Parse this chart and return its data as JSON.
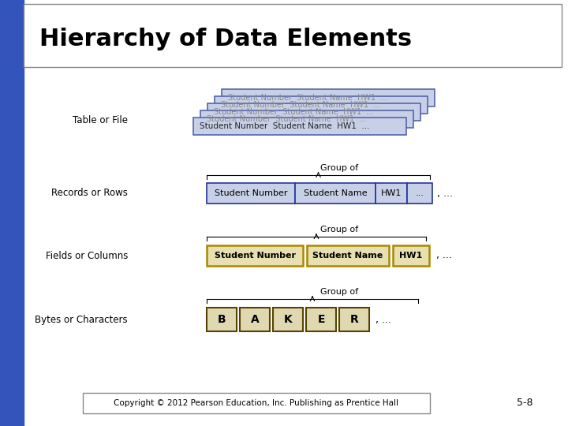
{
  "title": "Hierarchy of Data Elements",
  "title_fontsize": 22,
  "title_fontweight": "bold",
  "bg_color": "#ffffff",
  "left_bar_color": "#3355bb",
  "slide_bg": "#c8d0e8",
  "slide_border": "#5566aa",
  "slide_text_color": "#222222",
  "record_box_bg": "#c8d0e8",
  "record_box_border": "#223399",
  "field_box_bg": "#e8e0b0",
  "field_box_border": "#aa8800",
  "byte_box_bg": "#e0d8b0",
  "byte_box_border": "#554400",
  "labels": [
    "Table or File",
    "Records or Rows",
    "Fields or Columns",
    "Bytes or Characters"
  ],
  "group_of_text": "Group of",
  "copyright": "Copyright © 2012 Pearson Education, Inc. Publishing as Prentice Hall",
  "page_num": "5-8",
  "record_fields": [
    "Student Number",
    "Student Name",
    "HW1",
    "..."
  ],
  "field_items": [
    "Student Number",
    "Student Name",
    "HW1"
  ],
  "byte_items": [
    "B",
    "A",
    "K",
    "E",
    "R"
  ],
  "slide_text": "Student Number  Student Name  HW1  ..."
}
